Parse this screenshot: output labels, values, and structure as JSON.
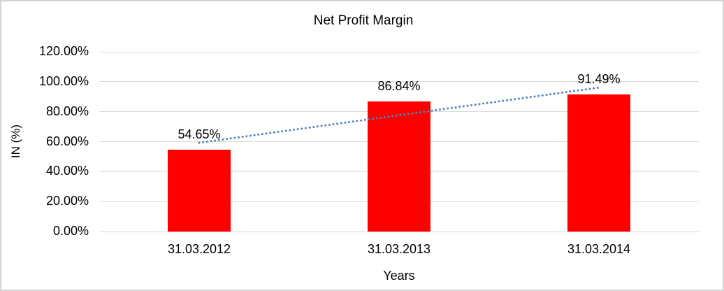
{
  "chart_data": {
    "type": "bar",
    "title": "Net Profit Margin",
    "categories": [
      "31.03.2012",
      "31.03.2013",
      "31.03.2014"
    ],
    "values": [
      54.65,
      86.84,
      91.49
    ],
    "data_labels": [
      "54.65%",
      "86.84%",
      "91.49%"
    ],
    "xlabel": "Years",
    "ylabel": "IN (%)",
    "ylim": [
      0,
      120
    ],
    "ytick_step": 20,
    "yticks": [
      {
        "value": 0,
        "label": "0.00%"
      },
      {
        "value": 20,
        "label": "20.00%"
      },
      {
        "value": 40,
        "label": "40.00%"
      },
      {
        "value": 60,
        "label": "60.00%"
      },
      {
        "value": 80,
        "label": "80.00%"
      },
      {
        "value": 100,
        "label": "100.00%"
      },
      {
        "value": 120,
        "label": "120.00%"
      }
    ],
    "grid": true,
    "legend": "none",
    "bar_color": "#ff0000",
    "trendline": {
      "type": "linear",
      "style": "dotted",
      "color": "#4f81bd"
    },
    "colors": {
      "gridline": "#d9d9d9",
      "frame_border": "#d3d3d3",
      "text": "#000000",
      "background": "#ffffff"
    }
  }
}
